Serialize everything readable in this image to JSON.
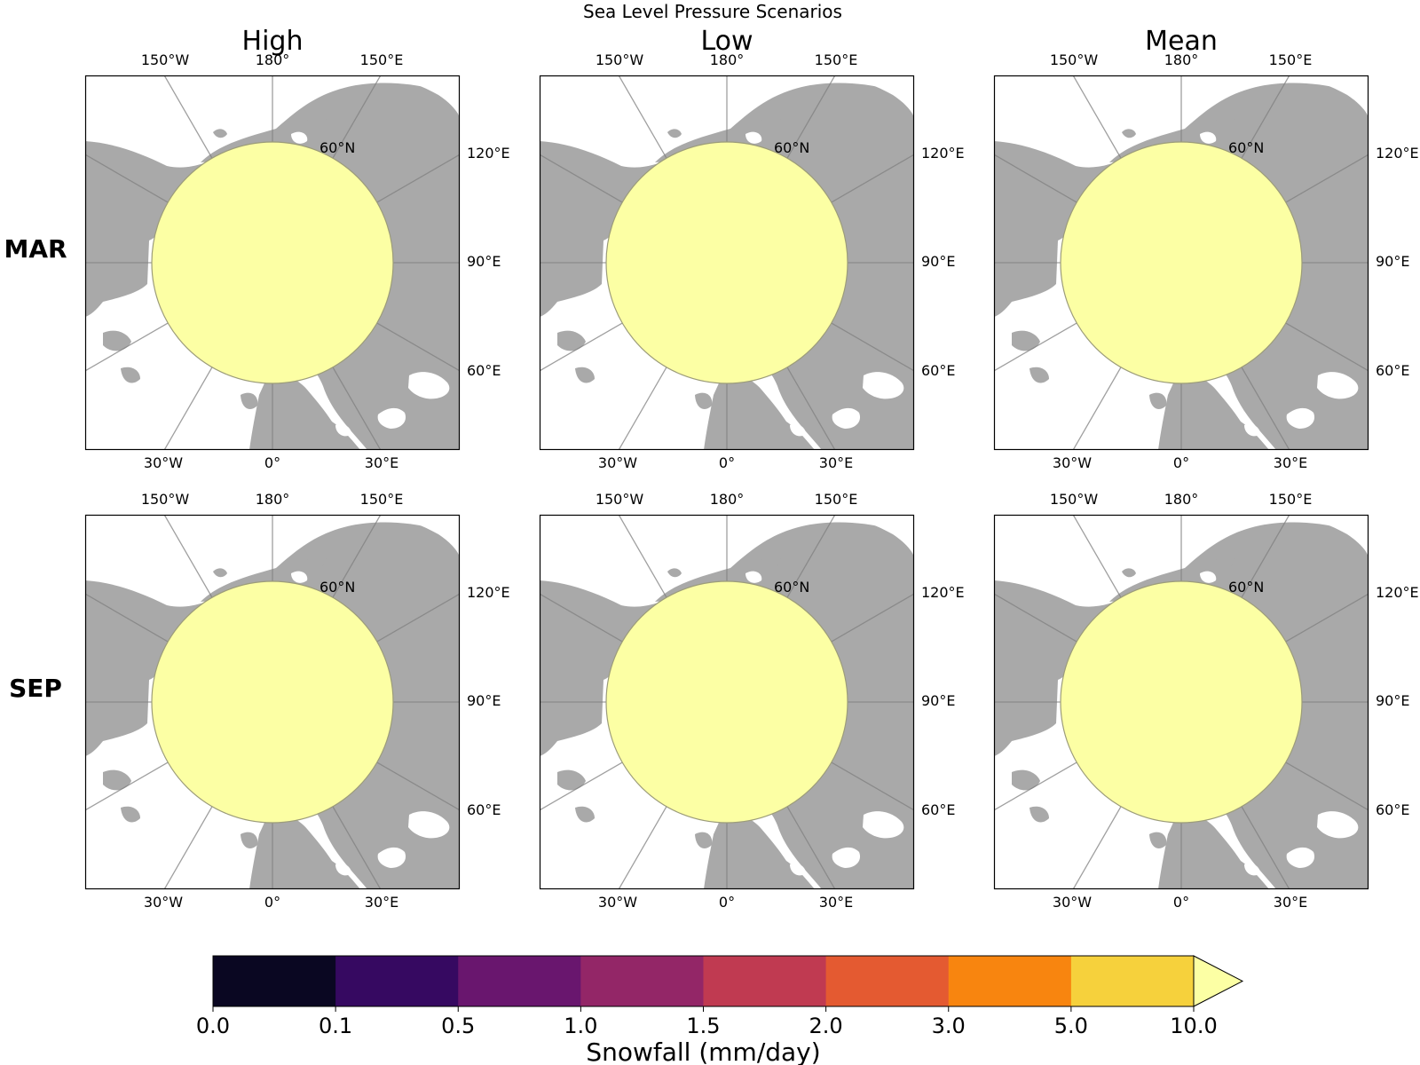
{
  "title": "Sea Level Pressure Scenarios",
  "columns": [
    "High",
    "Low",
    "Mean"
  ],
  "rows": [
    "MAR",
    "SEP"
  ],
  "lon_labels": {
    "top": [
      "150°W",
      "180°",
      "150°E"
    ],
    "right": [
      "120°E",
      "90°E",
      "60°E"
    ],
    "bottom": [
      "30°W",
      "0°",
      "30°E"
    ]
  },
  "lat_label": "60°N",
  "panel_fill_color": "#fcffa4",
  "land_color": "#a9a9a9",
  "colorbar": {
    "label": "Snowfall (mm/day)",
    "ticks": [
      "0.0",
      "0.1",
      "0.5",
      "1.0",
      "1.5",
      "2.0",
      "3.0",
      "5.0",
      "10.0"
    ],
    "colors": [
      "#0a0722",
      "#360961",
      "#69166e",
      "#932667",
      "#c03a51",
      "#e45a31",
      "#f8850f",
      "#f6d13c"
    ],
    "extend_color": "#fcffa4",
    "extend": "max"
  }
}
